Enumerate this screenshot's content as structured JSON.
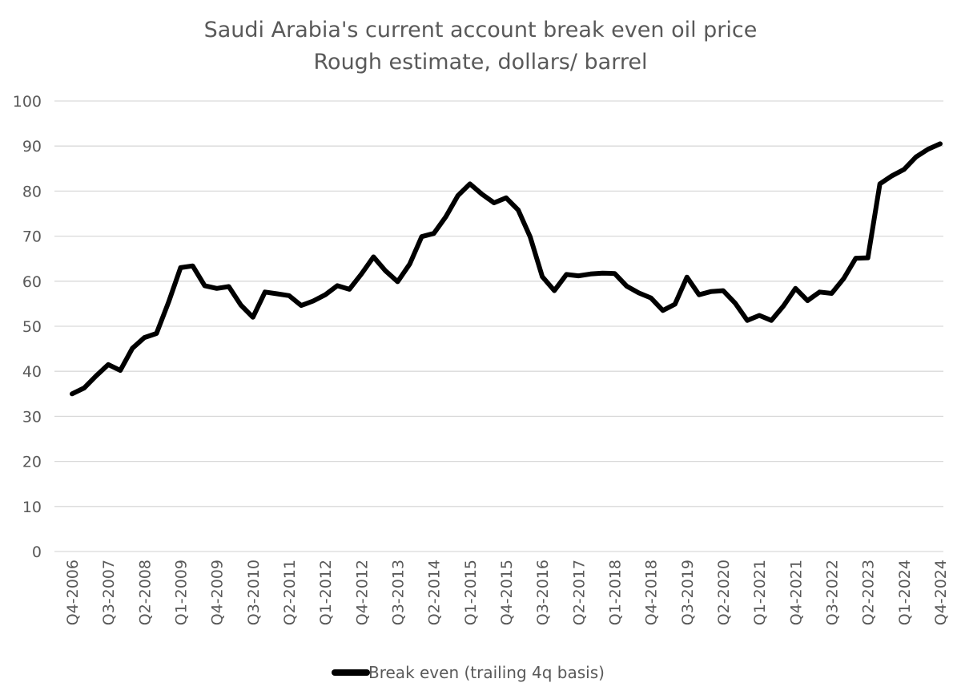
{
  "chart_data": {
    "type": "line",
    "title": "Saudi Arabia's current account break even oil price",
    "subtitle": "Rough estimate, dollars/ barrel",
    "xlabel": "",
    "ylabel": "",
    "ylim": [
      0,
      100
    ],
    "y_ticks": [
      0,
      10,
      20,
      30,
      40,
      50,
      60,
      70,
      80,
      90,
      100
    ],
    "grid": true,
    "legend_position": "bottom",
    "x_tick_labels": [
      "Q4-2006",
      "Q3-2007",
      "Q2-2008",
      "Q1-2009",
      "Q4-2009",
      "Q3-2010",
      "Q2-2011",
      "Q1-2012",
      "Q4-2012",
      "Q3-2013",
      "Q2-2014",
      "Q1-2015",
      "Q4-2015",
      "Q3-2016",
      "Q2-2017",
      "Q1-2018",
      "Q4-2018",
      "Q3-2019",
      "Q2-2020",
      "Q1-2021",
      "Q4-2021",
      "Q3-2022",
      "Q2-2023",
      "Q1-2024",
      "Q4-2024"
    ],
    "categories": [
      "Q4-2006",
      "Q1-2007",
      "Q2-2007",
      "Q3-2007",
      "Q4-2007",
      "Q1-2008",
      "Q2-2008",
      "Q3-2008",
      "Q4-2008",
      "Q1-2009",
      "Q2-2009",
      "Q3-2009",
      "Q4-2009",
      "Q1-2010",
      "Q2-2010",
      "Q3-2010",
      "Q4-2010",
      "Q1-2011",
      "Q2-2011",
      "Q3-2011",
      "Q4-2011",
      "Q1-2012",
      "Q2-2012",
      "Q3-2012",
      "Q4-2012",
      "Q1-2013",
      "Q2-2013",
      "Q3-2013",
      "Q4-2013",
      "Q1-2014",
      "Q2-2014",
      "Q3-2014",
      "Q4-2014",
      "Q1-2015",
      "Q2-2015",
      "Q3-2015",
      "Q4-2015",
      "Q1-2016",
      "Q2-2016",
      "Q3-2016",
      "Q4-2016",
      "Q1-2017",
      "Q2-2017",
      "Q3-2017",
      "Q4-2017",
      "Q1-2018",
      "Q2-2018",
      "Q3-2018",
      "Q4-2018",
      "Q1-2019",
      "Q2-2019",
      "Q3-2019",
      "Q4-2019",
      "Q1-2020",
      "Q2-2020",
      "Q3-2020",
      "Q4-2020",
      "Q1-2021",
      "Q2-2021",
      "Q3-2021",
      "Q4-2021",
      "Q1-2022",
      "Q2-2022",
      "Q3-2022",
      "Q4-2022",
      "Q1-2023",
      "Q2-2023",
      "Q3-2023",
      "Q4-2023",
      "Q1-2024",
      "Q2-2024",
      "Q3-2024",
      "Q4-2024"
    ],
    "series": [
      {
        "name": "Break even (trailing 4q basis)",
        "color": "#000000",
        "values": [
          35.0,
          36.3,
          39.0,
          41.5,
          40.2,
          45.1,
          47.5,
          48.4,
          55.3,
          63.0,
          63.4,
          59.0,
          58.4,
          58.8,
          54.7,
          52.0,
          57.6,
          57.2,
          56.8,
          54.6,
          55.6,
          57.0,
          59.0,
          58.2,
          61.6,
          65.4,
          62.3,
          59.9,
          63.8,
          69.9,
          70.6,
          74.3,
          79.0,
          81.6,
          79.3,
          77.4,
          78.5,
          75.8,
          69.8,
          61.0,
          57.9,
          61.5,
          61.2,
          61.6,
          61.8,
          61.7,
          58.9,
          57.4,
          56.3,
          53.5,
          54.9,
          60.9,
          57.0,
          57.7,
          57.9,
          55.1,
          51.3,
          52.4,
          51.3,
          54.5,
          58.4,
          55.7,
          57.6,
          57.3,
          60.6,
          65.1,
          65.2,
          81.6,
          83.4,
          84.8,
          87.6,
          89.3,
          90.5
        ]
      }
    ]
  }
}
